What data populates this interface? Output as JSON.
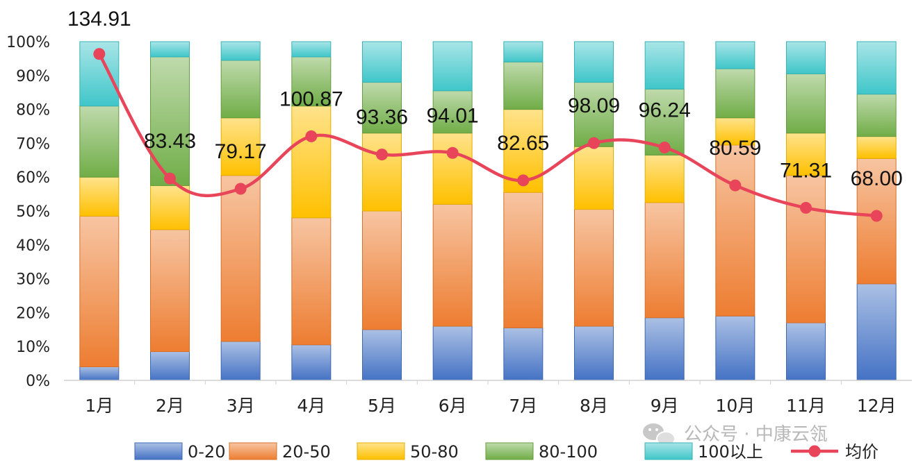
{
  "watermark": "公众号 · 中康云瓴",
  "colors": {
    "0-20": "#4472c4",
    "20-50": "#ed7d31",
    "50-80": "#ffc000",
    "80-100": "#70ad47",
    "100以上": "#3fc6c9",
    "line": "#e8455a"
  },
  "chart_data": {
    "type": "bar",
    "stacked": "percent",
    "categories": [
      "1月",
      "2月",
      "3月",
      "4月",
      "5月",
      "6月",
      "7月",
      "8月",
      "9月",
      "10月",
      "11月",
      "12月"
    ],
    "y_axis": {
      "ticks": [
        "0%",
        "10%",
        "20%",
        "30%",
        "40%",
        "50%",
        "60%",
        "70%",
        "80%",
        "90%",
        "100%"
      ],
      "ylim": [
        0,
        100
      ],
      "grid": false
    },
    "series": [
      {
        "name": "0-20",
        "values": [
          4,
          8.5,
          11.5,
          10.5,
          15,
          16,
          15.5,
          16,
          18.5,
          19,
          17,
          28.5
        ]
      },
      {
        "name": "20-50",
        "values": [
          44.5,
          36,
          49,
          37.5,
          35,
          36,
          40,
          34.5,
          34,
          50.5,
          43.5,
          37
        ]
      },
      {
        "name": "50-80",
        "values": [
          11.5,
          13,
          17,
          33,
          23,
          21,
          24.5,
          18.5,
          14,
          8,
          12.5,
          6.5
        ]
      },
      {
        "name": "80-100",
        "values": [
          21,
          38,
          17,
          14.5,
          15,
          12.5,
          14,
          19,
          19.5,
          14.5,
          17.5,
          12.5
        ]
      },
      {
        "name": "100以上",
        "values": [
          19,
          4.5,
          5.5,
          4.5,
          12,
          14.5,
          6,
          12,
          14,
          8,
          9.5,
          15.5
        ]
      }
    ],
    "line": {
      "name": "均价",
      "values": [
        134.91,
        83.43,
        79.17,
        100.87,
        93.36,
        94.01,
        82.65,
        98.09,
        96.24,
        80.59,
        71.31,
        68.0
      ],
      "labels": [
        "134.91",
        "83.43",
        "79.17",
        "100.87",
        "93.36",
        "94.01",
        "82.65",
        "98.09",
        "96.24",
        "80.59",
        "71.31",
        "68.00"
      ],
      "scale_max": 140
    },
    "legend": {
      "position": "bottom",
      "items": [
        "0-20",
        "20-50",
        "50-80",
        "80-100",
        "100以上",
        "均价"
      ]
    }
  }
}
